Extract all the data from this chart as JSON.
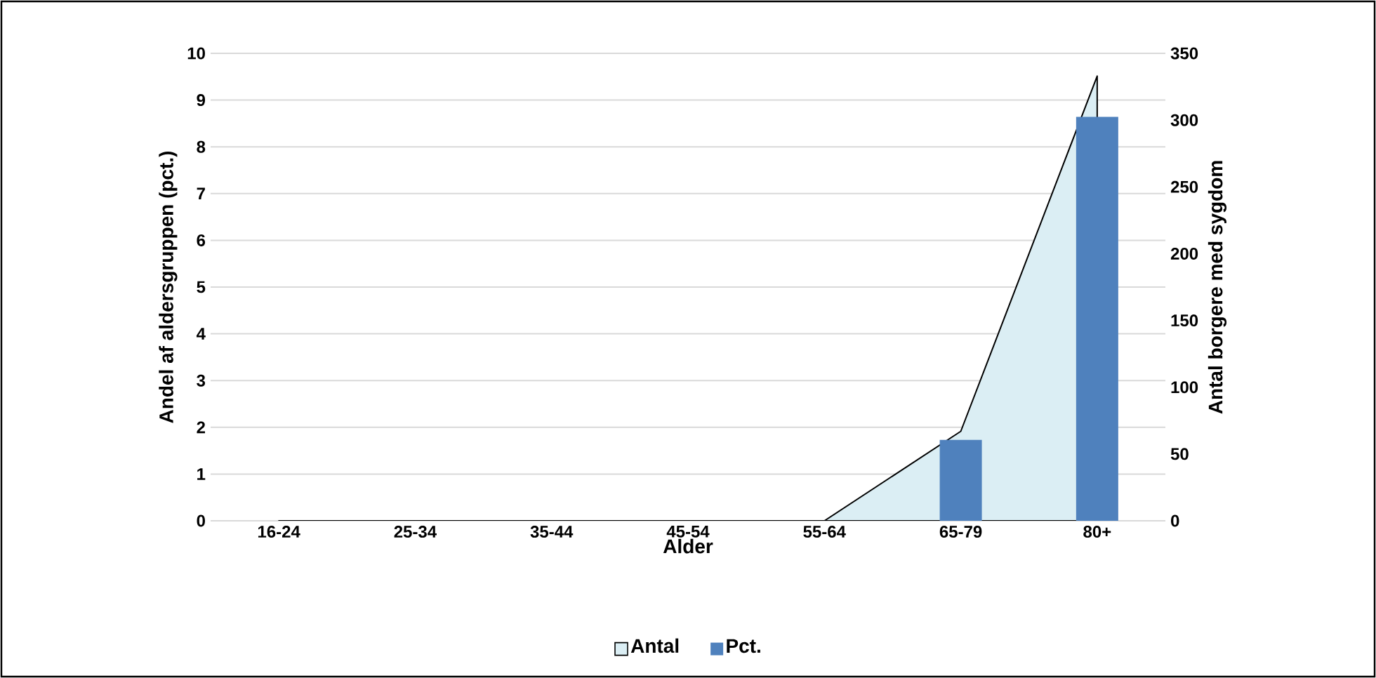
{
  "chart_data": {
    "type": "bar",
    "xlabel": "Alder",
    "ylabel": "Andel af aldersgruppen (pct.)",
    "y2label": "Antal borgere med sygdom",
    "categories": [
      "16-24",
      "25-34",
      "35-44",
      "45-54",
      "55-64",
      "65-79",
      "80+"
    ],
    "series": [
      {
        "name": "Antal",
        "type": "area",
        "axis": "y2",
        "color": "#dbeef4",
        "values": [
          0,
          0,
          0,
          0,
          0,
          67,
          333
        ]
      },
      {
        "name": "Pct.",
        "color": "#4f81bd",
        "values": [
          0,
          0,
          0,
          0,
          0,
          1.73,
          8.64
        ]
      }
    ],
    "ylim": [
      0,
      10
    ],
    "yticks": [
      0,
      1,
      2,
      3,
      4,
      5,
      6,
      7,
      8,
      9,
      10
    ],
    "y2lim": [
      0,
      350
    ],
    "y2ticks": [
      0,
      50,
      100,
      150,
      200,
      250,
      300,
      350
    ],
    "grid": "y",
    "legend": "bottom"
  }
}
